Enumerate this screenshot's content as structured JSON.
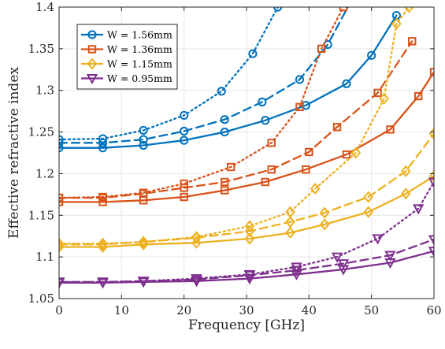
{
  "chart_data": {
    "type": "line",
    "title": "",
    "xlabel": "Frequency [GHz]",
    "ylabel": "Effective refractive index",
    "xlim": [
      0,
      60
    ],
    "ylim": [
      1.05,
      1.4
    ],
    "xticks": [
      0,
      10,
      20,
      30,
      40,
      50,
      60
    ],
    "yticks": [
      1.05,
      1.1,
      1.15,
      1.2,
      1.25,
      1.3,
      1.35,
      1.4
    ],
    "xtick_labels": [
      "0",
      "10",
      "20",
      "30",
      "40",
      "50",
      "60"
    ],
    "ytick_labels": [
      "1.05",
      "1.1",
      "1.15",
      "1.2",
      "1.25",
      "1.3",
      "1.35",
      "1.4"
    ],
    "grid": true,
    "legend_position": "top-left",
    "line_styles_note": [
      "solid",
      "dashed",
      "dotted"
    ],
    "series": [
      {
        "name": "W = 1.56mm",
        "color": "#0072BD",
        "marker": "circle",
        "solid": {
          "x": [
            0,
            7,
            13.5,
            20,
            26.5,
            33,
            39.5,
            46,
            50,
            54
          ],
          "y": [
            1.231,
            1.231,
            1.234,
            1.24,
            1.25,
            1.264,
            1.282,
            1.308,
            1.342,
            1.39
          ]
        },
        "dashed": {
          "x": [
            0,
            7,
            13.5,
            20,
            26.5,
            32.5,
            38.5,
            43,
            48
          ],
          "y": [
            1.237,
            1.237,
            1.241,
            1.251,
            1.265,
            1.286,
            1.313,
            1.355,
            1.425
          ]
        },
        "dotted": {
          "x": [
            0,
            7,
            13.5,
            20,
            26,
            31,
            35
          ],
          "y": [
            1.241,
            1.242,
            1.252,
            1.27,
            1.299,
            1.344,
            1.4
          ]
        }
      },
      {
        "name": "W = 1.36mm",
        "color": "#D95319",
        "marker": "square",
        "solid": {
          "x": [
            0,
            7,
            13.5,
            20,
            26.5,
            33,
            39.5,
            46,
            53,
            57.5,
            60
          ],
          "y": [
            1.166,
            1.166,
            1.168,
            1.172,
            1.18,
            1.19,
            1.205,
            1.223,
            1.253,
            1.293,
            1.322
          ]
        },
        "dashed": {
          "x": [
            0,
            7,
            13.5,
            20,
            26.5,
            34,
            40,
            44.5,
            51,
            56.5
          ],
          "y": [
            1.171,
            1.171,
            1.176,
            1.183,
            1.19,
            1.205,
            1.226,
            1.256,
            1.297,
            1.359
          ]
        },
        "dotted": {
          "x": [
            0,
            7,
            13.5,
            20,
            27.5,
            34,
            38.5,
            42,
            45.5
          ],
          "y": [
            1.171,
            1.172,
            1.177,
            1.188,
            1.208,
            1.237,
            1.28,
            1.35,
            1.4
          ]
        }
      },
      {
        "name": "W = 1.15mm",
        "color": "#EDB120",
        "marker": "diamond",
        "solid": {
          "x": [
            0,
            7,
            13.5,
            22,
            30.5,
            37,
            42.5,
            49.5,
            55.5,
            60
          ],
          "y": [
            1.112,
            1.112,
            1.115,
            1.117,
            1.122,
            1.129,
            1.139,
            1.154,
            1.176,
            1.197
          ]
        },
        "dashed": {
          "x": [
            0,
            7,
            13.5,
            22,
            30.5,
            37,
            42.5,
            49.5,
            55.5,
            60
          ],
          "y": [
            1.115,
            1.115,
            1.118,
            1.123,
            1.131,
            1.142,
            1.153,
            1.172,
            1.203,
            1.248
          ]
        },
        "dotted": {
          "x": [
            0,
            7,
            13.5,
            22,
            30.5,
            37,
            41,
            47.5,
            52,
            54,
            56
          ],
          "y": [
            1.116,
            1.116,
            1.118,
            1.124,
            1.137,
            1.154,
            1.182,
            1.225,
            1.29,
            1.38,
            1.4
          ]
        }
      },
      {
        "name": "W = 0.95mm",
        "color": "#7E2F8E",
        "marker": "triangle-down",
        "solid": {
          "x": [
            0,
            7,
            13.5,
            22,
            30.5,
            38,
            45.5,
            53,
            60
          ],
          "y": [
            1.069,
            1.069,
            1.07,
            1.071,
            1.074,
            1.079,
            1.085,
            1.093,
            1.107
          ]
        },
        "dashed": {
          "x": [
            0,
            7,
            13.5,
            22,
            30.5,
            38,
            45.5,
            53,
            60
          ],
          "y": [
            1.07,
            1.07,
            1.071,
            1.073,
            1.078,
            1.084,
            1.092,
            1.102,
            1.121
          ]
        },
        "dotted": {
          "x": [
            0,
            7,
            13.5,
            22,
            30.5,
            38,
            44.5,
            51,
            57.5,
            60
          ],
          "y": [
            1.07,
            1.07,
            1.071,
            1.074,
            1.079,
            1.088,
            1.1,
            1.122,
            1.158,
            1.19
          ]
        }
      }
    ]
  }
}
